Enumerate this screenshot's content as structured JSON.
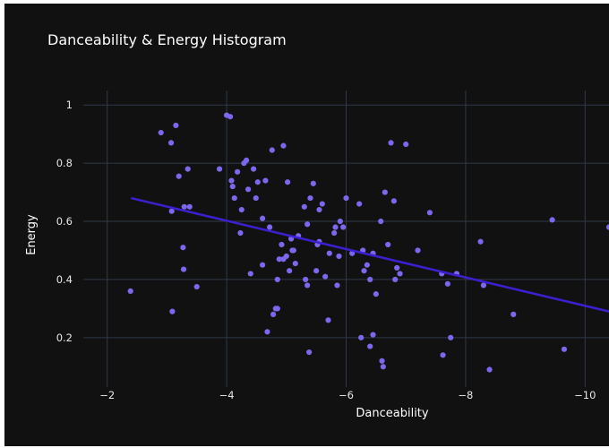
{
  "chart_data": {
    "type": "scatter",
    "title": "Danceability & Energy Histogram",
    "xlabel": "Danceability",
    "ylabel": "Energy",
    "xlim": [
      -1.6,
      -10.4
    ],
    "ylim": [
      0.03,
      1.05
    ],
    "xticks": [
      -2,
      -4,
      -6,
      -8,
      -10
    ],
    "xtick_labels": [
      "−2",
      "−4",
      "−6",
      "−8",
      "−10"
    ],
    "yticks": [
      0.2,
      0.4,
      0.6,
      0.8,
      1
    ],
    "ytick_labels": [
      "0.2",
      "0.4",
      "0.6",
      "0.8",
      "1"
    ],
    "grid": true,
    "colors": {
      "background": "#111111",
      "points": "#7b68ee",
      "trendline": "#3d1fd1",
      "grid": "#2f3a48"
    },
    "trendline": {
      "x": [
        -2.4,
        -10.4
      ],
      "y": [
        0.68,
        0.29
      ]
    },
    "points": {
      "x": [
        -2.39,
        -2.9,
        -3.07,
        -3.15,
        -3.08,
        -3.2,
        -3.29,
        -3.35,
        -3.27,
        -3.28,
        -3.38,
        -3.5,
        -3.09,
        -3.88,
        -4.0,
        -4.06,
        -4.08,
        -4.1,
        -4.23,
        -4.29,
        -4.33,
        -4.4,
        -4.45,
        -4.52,
        -4.49,
        -4.6,
        -4.65,
        -4.76,
        -4.95,
        -5.02,
        -4.82,
        -4.88,
        -4.92,
        -5.0,
        -5.05,
        -5.1,
        -5.12,
        -5.15,
        -5.08,
        -4.68,
        -4.78,
        -4.85,
        -4.95,
        -5.3,
        -5.35,
        -5.4,
        -5.45,
        -5.5,
        -5.52,
        -5.55,
        -5.6,
        -5.65,
        -5.7,
        -5.8,
        -5.85,
        -5.9,
        -5.95,
        -5.55,
        -5.72,
        -5.88,
        -6.0,
        -6.1,
        -6.22,
        -6.3,
        -6.35,
        -6.4,
        -6.45,
        -6.25,
        -6.4,
        -6.45,
        -6.5,
        -6.6,
        -6.62,
        -6.7,
        -6.75,
        -6.8,
        -6.82,
        -6.9,
        -6.85,
        -7.0,
        -7.2,
        -7.4,
        -7.62,
        -7.7,
        -7.75,
        -7.85,
        -7.6,
        -8.25,
        -8.3,
        -8.4,
        -8.8,
        -9.45,
        -9.65,
        -10.4,
        -4.18,
        -4.13,
        -4.36,
        -5.82,
        -6.28,
        -6.58,
        -6.65,
        -5.35,
        -5.38,
        -4.72,
        -4.85,
        -5.32,
        -4.25,
        -4.6,
        -5.2
      ],
      "y": [
        0.36,
        0.905,
        0.87,
        0.93,
        0.635,
        0.755,
        0.65,
        0.78,
        0.51,
        0.435,
        0.65,
        0.375,
        0.29,
        0.78,
        0.965,
        0.96,
        0.74,
        0.72,
        0.56,
        0.8,
        0.81,
        0.42,
        0.78,
        0.735,
        0.68,
        0.61,
        0.74,
        0.845,
        0.86,
        0.735,
        0.3,
        0.47,
        0.52,
        0.48,
        0.43,
        0.5,
        0.5,
        0.455,
        0.54,
        0.22,
        0.28,
        0.3,
        0.47,
        0.65,
        0.59,
        0.68,
        0.73,
        0.43,
        0.52,
        0.53,
        0.66,
        0.41,
        0.26,
        0.56,
        0.38,
        0.6,
        0.58,
        0.64,
        0.49,
        0.48,
        0.68,
        0.49,
        0.66,
        0.43,
        0.45,
        0.4,
        0.49,
        0.2,
        0.17,
        0.21,
        0.35,
        0.12,
        0.1,
        0.52,
        0.87,
        0.67,
        0.4,
        0.42,
        0.44,
        0.865,
        0.5,
        0.63,
        0.14,
        0.385,
        0.2,
        0.42,
        0.42,
        0.53,
        0.38,
        0.09,
        0.28,
        0.605,
        0.16,
        0.58,
        0.77,
        0.68,
        0.71,
        0.58,
        0.5,
        0.6,
        0.7,
        0.38,
        0.15,
        0.58,
        0.4,
        0.4,
        0.64,
        0.45,
        0.55
      ]
    }
  }
}
